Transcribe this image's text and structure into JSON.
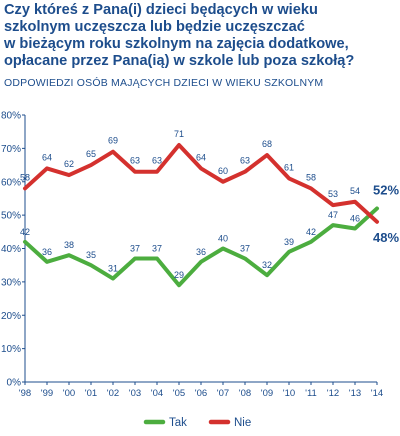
{
  "title_lines": [
    "Czy któreś z Pana(i) dzieci będących w wieku",
    "szkolnym uczęszcza lub będzie uczęszczać",
    "w bieżącym roku szkolnym na zajęcia dodatkowe,",
    "opłacane przez Pana(ią) w szkole lub poza szkołą?"
  ],
  "subtitle": "ODPOWIEDZI OSÓB MAJĄCYCH DZIECI W WIEKU SZKOLNYM",
  "colors": {
    "tak": "#4cad3f",
    "nie": "#d4312e",
    "text": "#1d4d8c",
    "axis": "#1d4d8c"
  },
  "chart_data": {
    "type": "line",
    "x": [
      "'98",
      "'99",
      "'00",
      "'01",
      "'02",
      "'03",
      "'04",
      "'05",
      "'06",
      "'07",
      "'08",
      "'09",
      "'10",
      "'11",
      "'12",
      "'13",
      "'14"
    ],
    "ylim": [
      0,
      80
    ],
    "yticks": [
      "0%",
      "10%",
      "20%",
      "30%",
      "40%",
      "50%",
      "60%",
      "70%",
      "80%"
    ],
    "grid": false,
    "legend_position": "bottom",
    "series": [
      {
        "name": "Tak",
        "values": [
          42,
          36,
          38,
          35,
          31,
          37,
          37,
          29,
          36,
          40,
          37,
          32,
          39,
          42,
          47,
          46,
          52
        ],
        "labels": [
          "42",
          "36",
          "38",
          "35",
          "31",
          "37",
          "37",
          "29",
          "36",
          "40",
          "37",
          "32",
          "39",
          "42",
          "47",
          "46",
          "52%"
        ]
      },
      {
        "name": "Nie",
        "values": [
          58,
          64,
          62,
          65,
          69,
          63,
          63,
          71,
          64,
          60,
          63,
          68,
          61,
          58,
          53,
          54,
          48
        ],
        "labels": [
          "58",
          "64",
          "62",
          "65",
          "69",
          "63",
          "63",
          "71",
          "64",
          "60",
          "63",
          "68",
          "61",
          "58",
          "53",
          "54",
          "48%"
        ]
      }
    ]
  }
}
